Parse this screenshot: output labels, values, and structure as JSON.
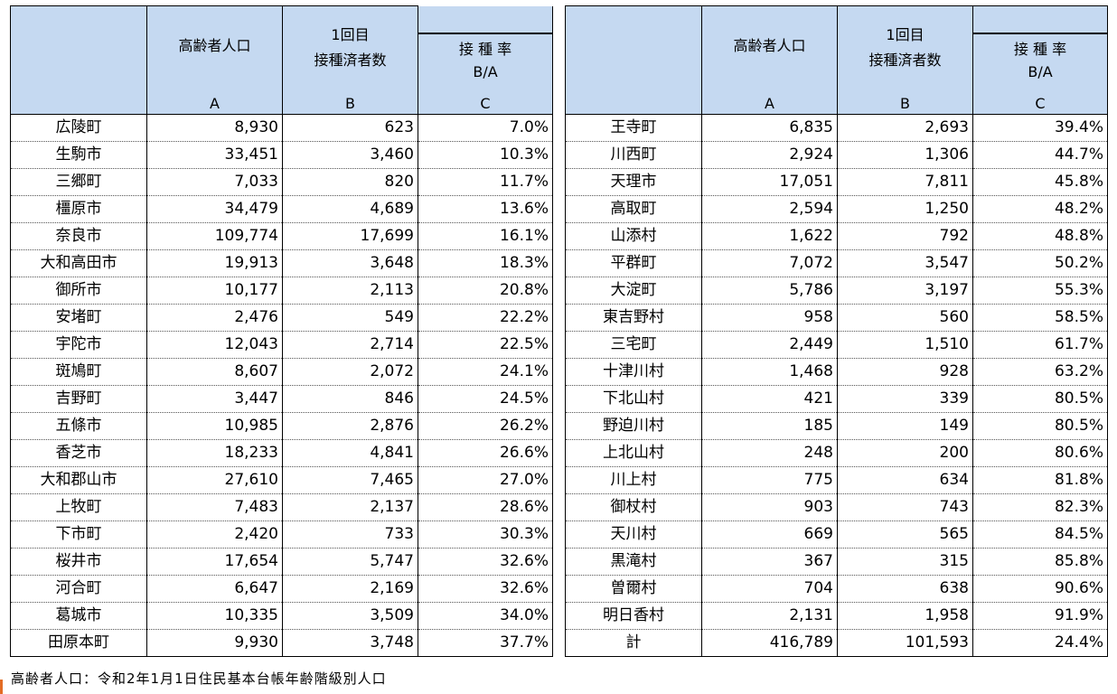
{
  "headers": {
    "pop": "高齢者人口",
    "pop_letter": "A",
    "dose_line1": "1回目",
    "dose_line2": "接種済者数",
    "dose_letter": "B",
    "rate_line1": "接 種 率",
    "rate_line2": "B/A",
    "rate_letter": "C"
  },
  "left_rows": [
    {
      "name": "広陵町",
      "a": "8,930",
      "b": "623",
      "c": "7.0%"
    },
    {
      "name": "生駒市",
      "a": "33,451",
      "b": "3,460",
      "c": "10.3%"
    },
    {
      "name": "三郷町",
      "a": "7,033",
      "b": "820",
      "c": "11.7%"
    },
    {
      "name": "橿原市",
      "a": "34,479",
      "b": "4,689",
      "c": "13.6%"
    },
    {
      "name": "奈良市",
      "a": "109,774",
      "b": "17,699",
      "c": "16.1%"
    },
    {
      "name": "大和高田市",
      "a": "19,913",
      "b": "3,648",
      "c": "18.3%"
    },
    {
      "name": "御所市",
      "a": "10,177",
      "b": "2,113",
      "c": "20.8%"
    },
    {
      "name": "安堵町",
      "a": "2,476",
      "b": "549",
      "c": "22.2%"
    },
    {
      "name": "宇陀市",
      "a": "12,043",
      "b": "2,714",
      "c": "22.5%"
    },
    {
      "name": "斑鳩町",
      "a": "8,607",
      "b": "2,072",
      "c": "24.1%"
    },
    {
      "name": "吉野町",
      "a": "3,447",
      "b": "846",
      "c": "24.5%"
    },
    {
      "name": "五條市",
      "a": "10,985",
      "b": "2,876",
      "c": "26.2%"
    },
    {
      "name": "香芝市",
      "a": "18,233",
      "b": "4,841",
      "c": "26.6%"
    },
    {
      "name": "大和郡山市",
      "a": "27,610",
      "b": "7,465",
      "c": "27.0%"
    },
    {
      "name": "上牧町",
      "a": "7,483",
      "b": "2,137",
      "c": "28.6%"
    },
    {
      "name": "下市町",
      "a": "2,420",
      "b": "733",
      "c": "30.3%"
    },
    {
      "name": "桜井市",
      "a": "17,654",
      "b": "5,747",
      "c": "32.6%"
    },
    {
      "name": "河合町",
      "a": "6,647",
      "b": "2,169",
      "c": "32.6%"
    },
    {
      "name": "葛城市",
      "a": "10,335",
      "b": "3,509",
      "c": "34.0%"
    },
    {
      "name": "田原本町",
      "a": "9,930",
      "b": "3,748",
      "c": "37.7%"
    }
  ],
  "right_rows": [
    {
      "name": "王寺町",
      "a": "6,835",
      "b": "2,693",
      "c": "39.4%"
    },
    {
      "name": "川西町",
      "a": "2,924",
      "b": "1,306",
      "c": "44.7%"
    },
    {
      "name": "天理市",
      "a": "17,051",
      "b": "7,811",
      "c": "45.8%"
    },
    {
      "name": "高取町",
      "a": "2,594",
      "b": "1,250",
      "c": "48.2%"
    },
    {
      "name": "山添村",
      "a": "1,622",
      "b": "792",
      "c": "48.8%"
    },
    {
      "name": "平群町",
      "a": "7,072",
      "b": "3,547",
      "c": "50.2%"
    },
    {
      "name": "大淀町",
      "a": "5,786",
      "b": "3,197",
      "c": "55.3%"
    },
    {
      "name": "東吉野村",
      "a": "958",
      "b": "560",
      "c": "58.5%"
    },
    {
      "name": "三宅町",
      "a": "2,449",
      "b": "1,510",
      "c": "61.7%"
    },
    {
      "name": "十津川村",
      "a": "1,468",
      "b": "928",
      "c": "63.2%"
    },
    {
      "name": "下北山村",
      "a": "421",
      "b": "339",
      "c": "80.5%"
    },
    {
      "name": "野迫川村",
      "a": "185",
      "b": "149",
      "c": "80.5%"
    },
    {
      "name": "上北山村",
      "a": "248",
      "b": "200",
      "c": "80.6%"
    },
    {
      "name": "川上村",
      "a": "775",
      "b": "634",
      "c": "81.8%"
    },
    {
      "name": "御杖村",
      "a": "903",
      "b": "743",
      "c": "82.3%"
    },
    {
      "name": "天川村",
      "a": "669",
      "b": "565",
      "c": "84.5%"
    },
    {
      "name": "黒滝村",
      "a": "367",
      "b": "315",
      "c": "85.8%"
    },
    {
      "name": "曽爾村",
      "a": "704",
      "b": "638",
      "c": "90.6%"
    },
    {
      "name": "明日香村",
      "a": "2,131",
      "b": "1,958",
      "c": "91.9%"
    },
    {
      "name": "計",
      "a": "416,789",
      "b": "101,593",
      "c": "24.4%"
    }
  ],
  "footnote": "高齢者人口：令和2年1月1日住民基本台帳年齢階級別人口"
}
